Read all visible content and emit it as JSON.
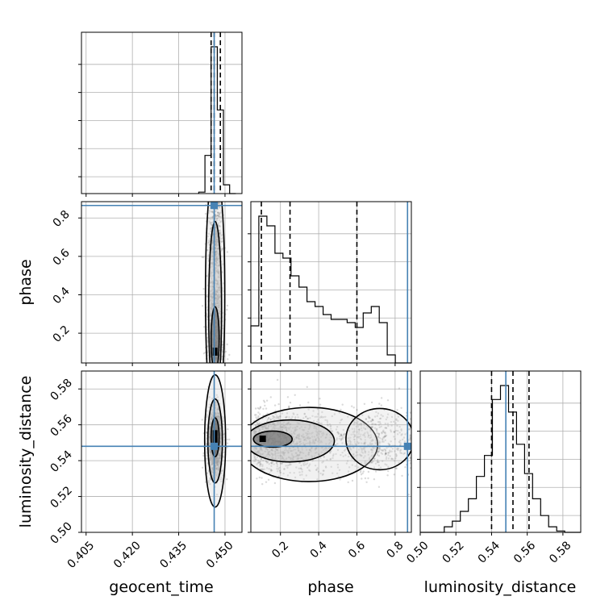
{
  "chart_data": {
    "type": "corner",
    "parameters": [
      "geocent_time",
      "phase",
      "luminosity_distance"
    ],
    "ranges": {
      "geocent_time": [
        0.4035,
        0.4555
      ],
      "phase": [
        0.045,
        0.885
      ],
      "luminosity_distance": [
        0.5,
        0.59
      ]
    },
    "truths": {
      "geocent_time": 0.4465,
      "phase": 0.865,
      "luminosity_distance": 0.548
    },
    "quantiles": {
      "geocent_time": [
        0.4455,
        0.4465,
        0.4485
      ],
      "phase": [
        0.1,
        0.25,
        0.6
      ],
      "luminosity_distance": [
        0.54,
        0.552,
        0.561
      ]
    },
    "tick_labels": {
      "geocent_time": [
        "0.405",
        "0.420",
        "0.435",
        "0.450"
      ],
      "phase": [
        "0.2",
        "0.4",
        "0.6",
        "0.8"
      ],
      "luminosity_distance_x": [
        "0.50",
        "0.52",
        "0.54",
        "0.56",
        "0.58"
      ],
      "luminosity_distance_y": [
        "0.50",
        "0.52",
        "0.54",
        "0.56",
        "0.58"
      ]
    },
    "tick_values": {
      "geocent_time": [
        0.405,
        0.42,
        0.435,
        0.45
      ],
      "phase": [
        0.2,
        0.4,
        0.6,
        0.8
      ],
      "luminosity_distance": [
        0.5,
        0.52,
        0.54,
        0.56,
        0.58
      ]
    },
    "hist_geocent_time": {
      "edges": [
        0.4415,
        0.4435,
        0.4455,
        0.4475,
        0.4495,
        0.4515,
        0.4535
      ],
      "counts": [
        1,
        26,
        100,
        57,
        6,
        0
      ]
    },
    "hist_phase": {
      "bin_width": 0.042,
      "start": 0.045,
      "counts": [
        23,
        91,
        85,
        68,
        65,
        54,
        47,
        38,
        35,
        30,
        27,
        27,
        25,
        22,
        31,
        35,
        25,
        5,
        0,
        0
      ]
    },
    "hist_luminosity_distance": {
      "start": 0.5,
      "bin_width": 0.0045,
      "counts": [
        0,
        0,
        0,
        4,
        8,
        15,
        24,
        40,
        55,
        95,
        105,
        86,
        63,
        42,
        24,
        12,
        4,
        1,
        0,
        0
      ]
    },
    "colors": {
      "truth": "#4682b4",
      "hist": "#000000",
      "grid": "#b0b0b0",
      "points": "#333333"
    }
  }
}
